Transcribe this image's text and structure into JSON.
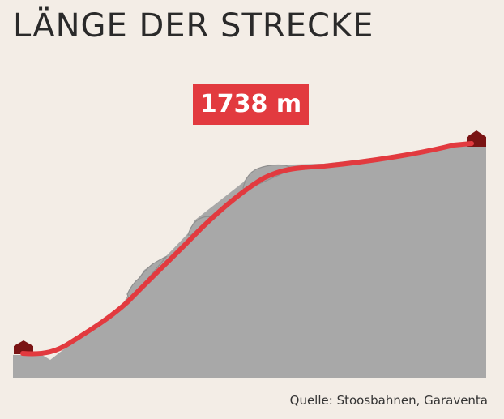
{
  "title": "LÄNGE DER STRECKE",
  "length_badge": "1738 m",
  "source": "Quelle: Stoosbahnen, Garaventa",
  "colors": {
    "background": "#f3ede6",
    "mountain": "#a8a8a8",
    "rock_outline": "#8c8c8c",
    "track": "#e23a3f",
    "station": "#7a1414"
  },
  "icons": {
    "valley_station": "station-house-icon",
    "mountain_station": "station-house-icon"
  }
}
